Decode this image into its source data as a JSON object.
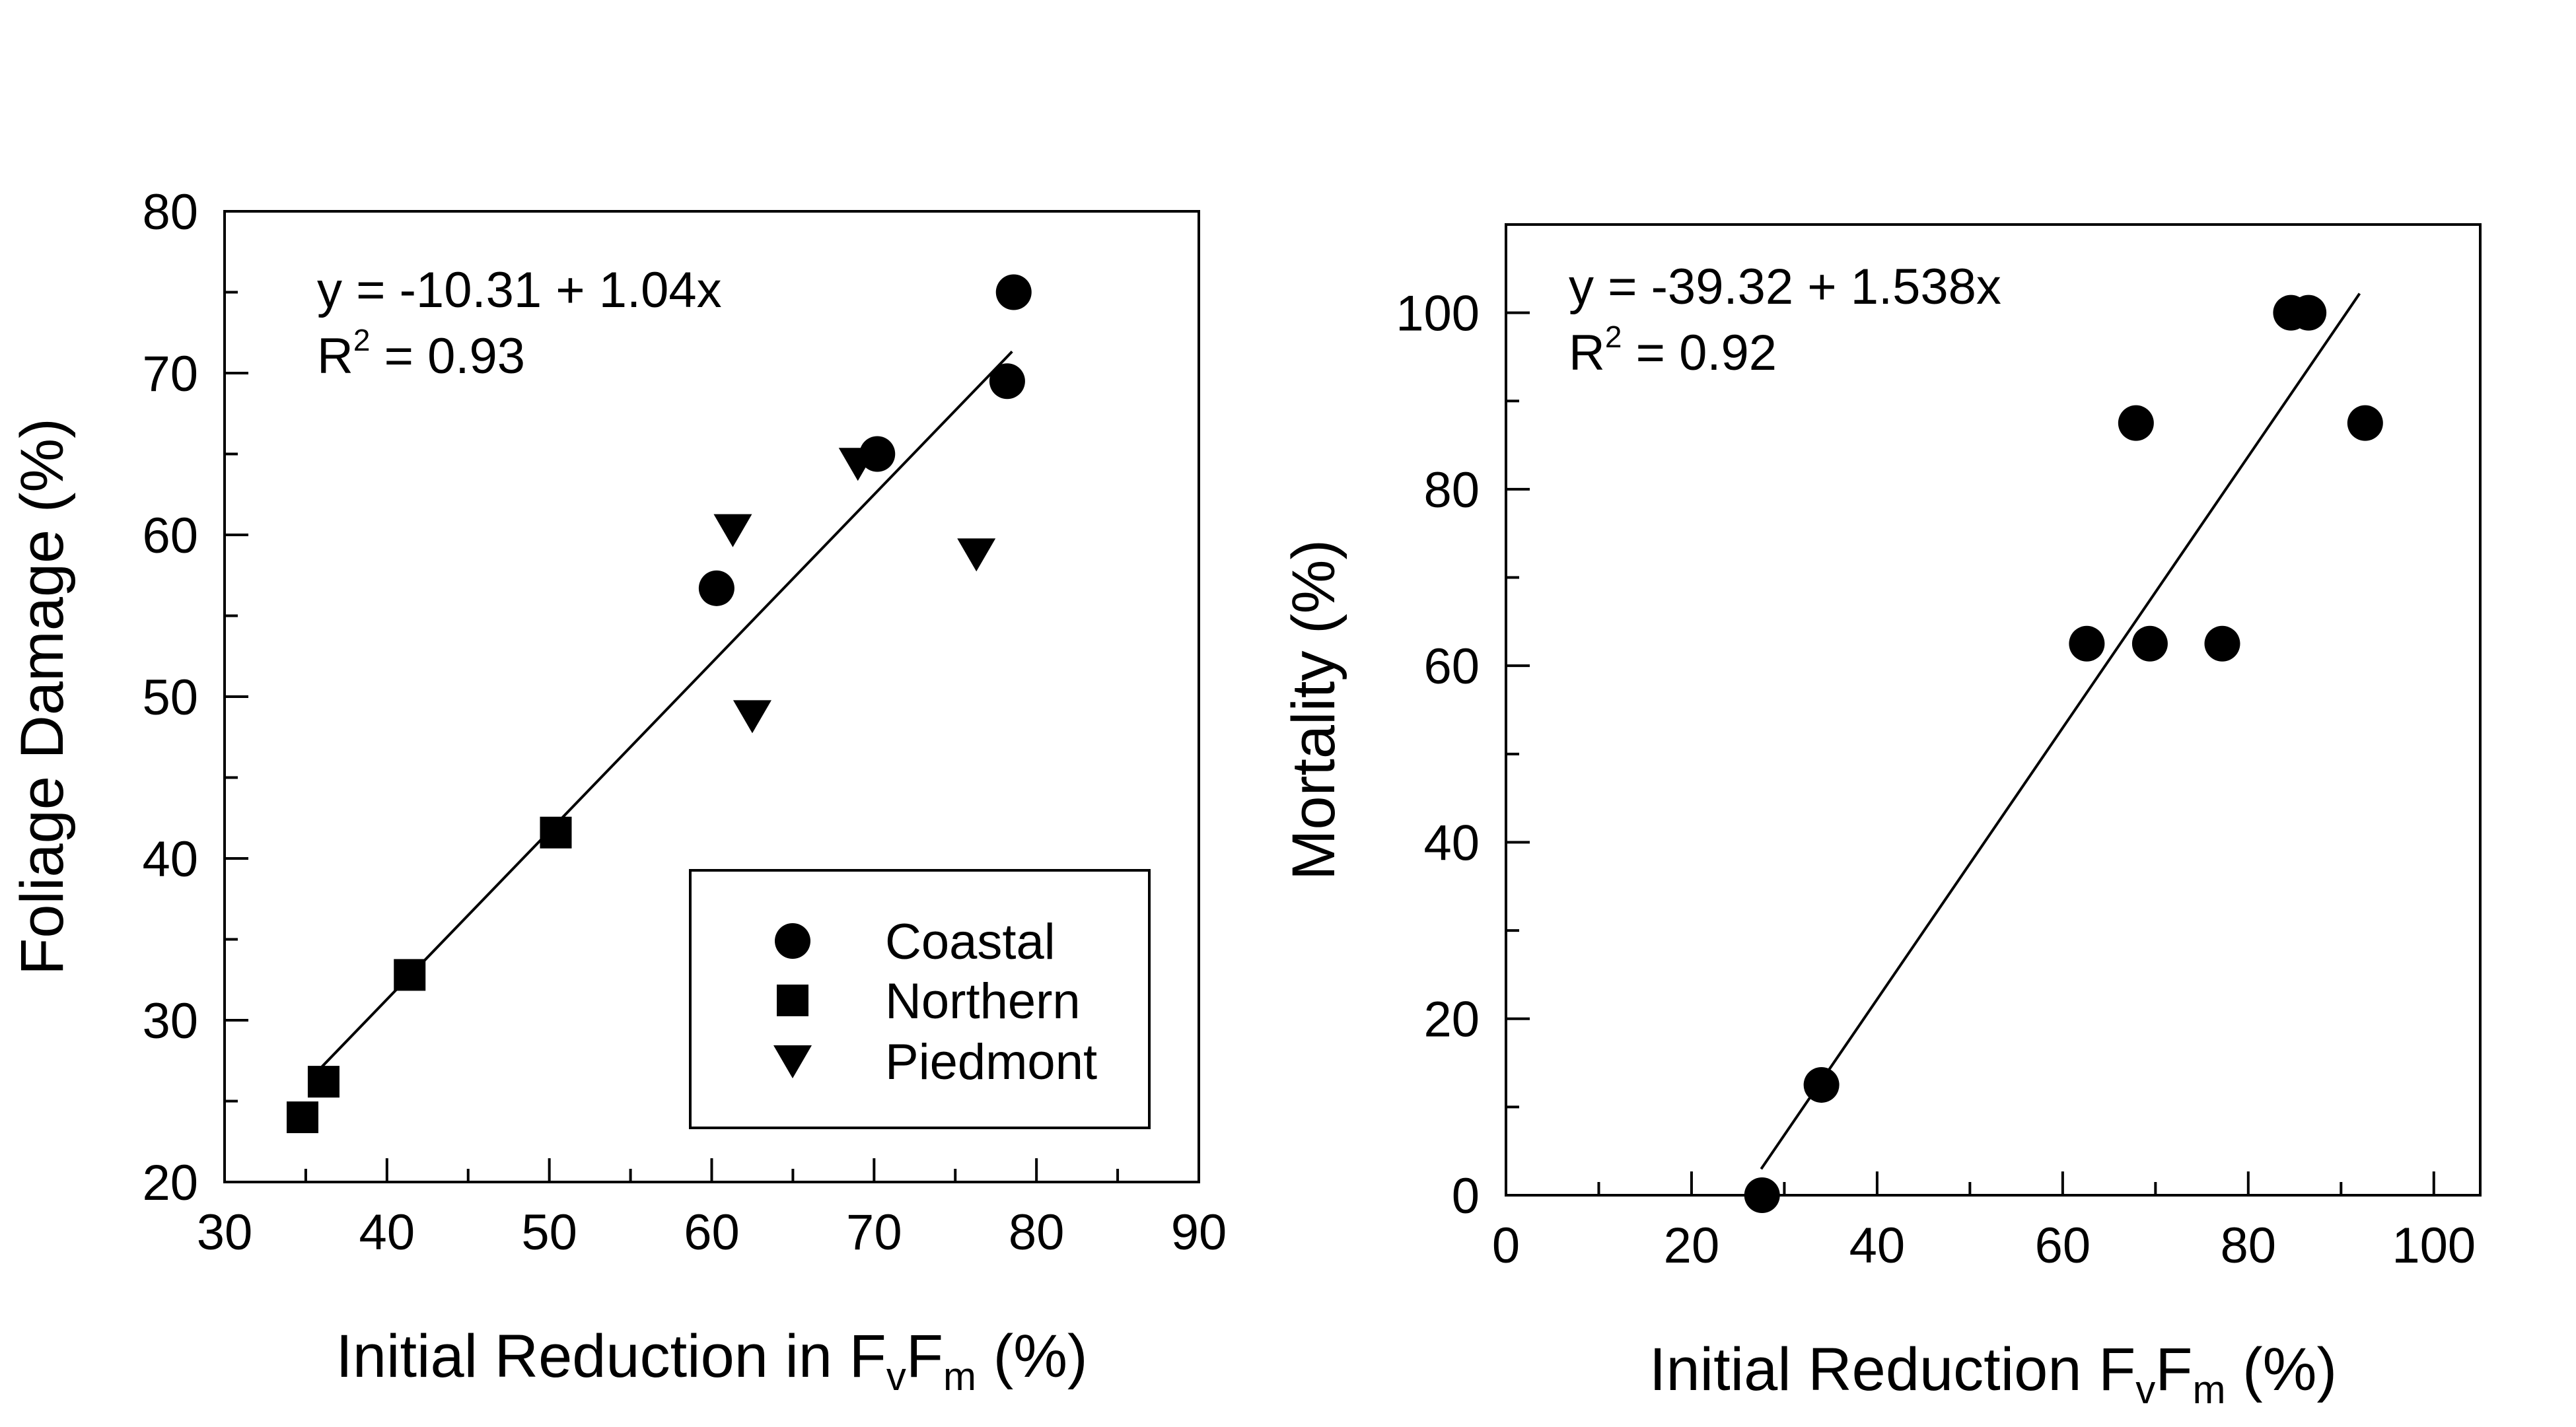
{
  "chart_data": [
    {
      "type": "scatter",
      "x_label_parts": [
        "Initial Reduction in F",
        "v",
        "F",
        "m",
        " (%)"
      ],
      "y_label": "Foliage Damage (%)",
      "xlim": [
        30,
        90
      ],
      "ylim": [
        20,
        80
      ],
      "x_ticks": [
        30,
        40,
        50,
        60,
        70,
        80,
        90
      ],
      "y_ticks": [
        20,
        30,
        40,
        50,
        60,
        70,
        80
      ],
      "equation": "y = -10.31 + 1.04x",
      "r2_prefix": "R",
      "r2_exponent": "2",
      "r2_value": " = 0.93",
      "fit": {
        "intercept": -10.31,
        "slope": 1.04,
        "x_range": [
          36,
          78.5
        ]
      },
      "legend_position": "bottom-right",
      "series": [
        {
          "name": "Coastal",
          "marker": "circle",
          "x": [
            60.3,
            70.2,
            78.2,
            78.6
          ],
          "y": [
            56.7,
            65.0,
            69.5,
            75.0
          ]
        },
        {
          "name": "Northern",
          "marker": "square",
          "x": [
            34.8,
            36.1,
            41.4,
            50.4
          ],
          "y": [
            24.0,
            26.2,
            32.8,
            41.6
          ]
        },
        {
          "name": "Piedmont",
          "marker": "triangle-down",
          "x": [
            61.3,
            62.5,
            69.0,
            76.3
          ],
          "y": [
            60.3,
            48.8,
            64.4,
            58.8
          ]
        }
      ]
    },
    {
      "type": "scatter",
      "x_label_parts": [
        "Initial Reduction F",
        "v",
        "F",
        "m",
        " (%)"
      ],
      "y_label": "Mortality (%)",
      "xlim": [
        0,
        105
      ],
      "ylim": [
        0,
        110
      ],
      "x_ticks": [
        0,
        20,
        40,
        60,
        80,
        100
      ],
      "y_ticks": [
        0,
        20,
        40,
        60,
        80,
        100
      ],
      "equation": "y = -39.32 + 1.538x",
      "r2_prefix": "R",
      "r2_exponent": "2",
      "r2_value": " = 0.92",
      "fit": {
        "intercept": -39.32,
        "slope": 1.538,
        "x_range": [
          27.5,
          92
        ]
      },
      "series": [
        {
          "marker": "circle",
          "x": [
            27.6,
            34.0,
            62.6,
            67.9,
            69.4,
            77.2,
            84.6,
            86.5,
            92.6
          ],
          "y": [
            0,
            12.5,
            62.5,
            87.5,
            62.5,
            62.5,
            100,
            100,
            87.5
          ]
        }
      ]
    }
  ]
}
